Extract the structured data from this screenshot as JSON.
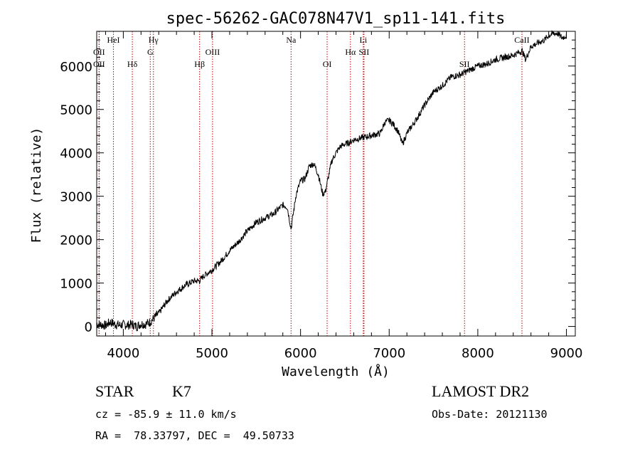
{
  "chart_data": {
    "type": "line",
    "title": "spec-56262-GAC078N47V1_sp11-141.fits",
    "xlabel": "Wavelength (Å)",
    "ylabel": "Flux (relative)",
    "xlim": [
      3700,
      9100
    ],
    "ylim": [
      -220,
      6800
    ],
    "xticks": [
      4000,
      5000,
      6000,
      7000,
      8000,
      9000
    ],
    "yticks": [
      0,
      1000,
      2000,
      3000,
      4000,
      5000,
      6000
    ],
    "grid": false,
    "line_color": "#000000",
    "marker_color": "#c00000",
    "spectrum": {
      "x": [
        3700,
        3750,
        3800,
        3850,
        3900,
        3950,
        4000,
        4050,
        4100,
        4150,
        4200,
        4250,
        4300,
        4350,
        4400,
        4450,
        4500,
        4600,
        4700,
        4800,
        4860,
        4900,
        5000,
        5100,
        5200,
        5300,
        5400,
        5500,
        5600,
        5700,
        5800,
        5850,
        5893,
        5950,
        6000,
        6050,
        6100,
        6150,
        6200,
        6250,
        6280,
        6300,
        6350,
        6400,
        6450,
        6500,
        6563,
        6600,
        6700,
        6800,
        6900,
        6950,
        7000,
        7050,
        7100,
        7150,
        7200,
        7300,
        7400,
        7500,
        7600,
        7700,
        7800,
        7900,
        8000,
        8100,
        8200,
        8300,
        8400,
        8450,
        8500,
        8540,
        8600,
        8700,
        8750,
        8800,
        8850,
        8900,
        8950,
        9000
      ],
      "y": [
        50,
        40,
        20,
        100,
        60,
        30,
        40,
        30,
        50,
        0,
        60,
        50,
        100,
        200,
        300,
        450,
        600,
        800,
        950,
        1050,
        1050,
        1150,
        1300,
        1500,
        1750,
        1950,
        2200,
        2400,
        2500,
        2600,
        2800,
        2750,
        2250,
        3050,
        3350,
        3400,
        3700,
        3750,
        3500,
        3050,
        3100,
        3300,
        3800,
        4000,
        4150,
        4200,
        4250,
        4300,
        4350,
        4400,
        4450,
        4700,
        4750,
        4650,
        4500,
        4200,
        4450,
        4750,
        5100,
        5400,
        5550,
        5750,
        5800,
        5900,
        6000,
        6050,
        6150,
        6200,
        6250,
        6300,
        6350,
        6150,
        6450,
        6550,
        6600,
        6700,
        6750,
        6750,
        6650,
        6700
      ]
    },
    "lines": [
      {
        "label": "OII",
        "wave": 3727,
        "row": 1
      },
      {
        "label": "OII",
        "wave": 3727,
        "row": 2
      },
      {
        "label": "HeI",
        "wave": 3889,
        "row": 0
      },
      {
        "label": "Hδ",
        "wave": 4102,
        "row": 2
      },
      {
        "label": "Hγ",
        "wave": 4340,
        "row": 0
      },
      {
        "label": "G",
        "wave": 4304,
        "row": 1
      },
      {
        "label": "OIII",
        "wave": 5007,
        "row": 1
      },
      {
        "label": "Hβ",
        "wave": 4861,
        "row": 2
      },
      {
        "label": "Na",
        "wave": 5893,
        "row": 0
      },
      {
        "label": "OI",
        "wave": 6300,
        "row": 2
      },
      {
        "label": "Hα",
        "wave": 6563,
        "row": 1
      },
      {
        "label": "SII",
        "wave": 6716,
        "row": 1
      },
      {
        "label": "Li",
        "wave": 6708,
        "row": 0
      },
      {
        "label": "SII",
        "wave": 7850,
        "row": 2
      },
      {
        "label": "CaII",
        "wave": 8498,
        "row": 0
      }
    ]
  },
  "info": {
    "object_class": "STAR",
    "subclass": "K7",
    "survey": "LAMOST DR2",
    "cz": "cz = -85.9 ± 11.0 km/s",
    "obs_date": "Obs-Date: 20121130",
    "coords": "RA =  78.33797, DEC =  49.50733"
  }
}
